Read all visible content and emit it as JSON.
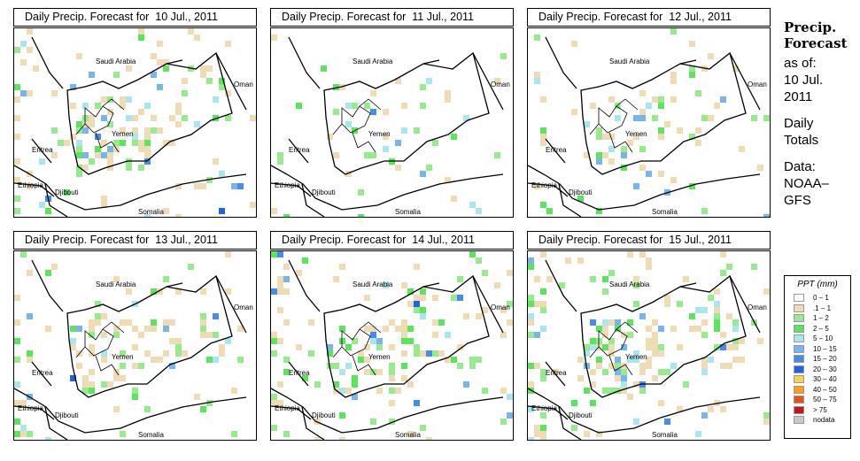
{
  "panels": [
    {
      "title": "Daily Precip. Forecast for  10 Jul., 2011",
      "density": 0.75,
      "seed": 11
    },
    {
      "title": "Daily Precip. Forecast for  11 Jul., 2011",
      "density": 0.25,
      "seed": 23
    },
    {
      "title": "Daily Precip. Forecast for  12 Jul., 2011",
      "density": 0.45,
      "seed": 37
    },
    {
      "title": "Daily Precip. Forecast for  13 Jul., 2011",
      "density": 0.65,
      "seed": 41
    },
    {
      "title": "Daily Precip. Forecast for  14 Jul., 2011",
      "density": 0.8,
      "seed": 53
    },
    {
      "title": "Daily Precip. Forecast for  15 Jul., 2011",
      "density": 0.85,
      "seed": 67
    }
  ],
  "map_labels": {
    "saudi": "Saudi Arabia",
    "oman": "Oman",
    "yemen": "Yemen",
    "eritrea": "Eritrea",
    "ethiopia": "Ethiopia",
    "djibouti": "Djibouti",
    "somalia": "Somalia"
  },
  "side": {
    "heading1": "Precip.",
    "heading2": "Forecast",
    "asof": "as of:",
    "date1": "10 Jul.",
    "date2": "2011",
    "daily1": "Daily",
    "daily2": "Totals",
    "data1": "Data:",
    "data2": "NOAA–",
    "data3": "GFS"
  },
  "legend": {
    "title": "PPT (mm)",
    "items": [
      {
        "label": "0 – 1",
        "color": "#ffffff"
      },
      {
        "label": ".1 – 1",
        "color": "#efdcb4"
      },
      {
        "label": "1 – 2",
        "color": "#96eb8c"
      },
      {
        "label": "2 – 5",
        "color": "#5ae65a"
      },
      {
        "label": "5 – 10",
        "color": "#aae6f0"
      },
      {
        "label": "10 – 15",
        "color": "#78b4f0"
      },
      {
        "label": "15 – 20",
        "color": "#468cf0"
      },
      {
        "label": "20 – 30",
        "color": "#1e64e6"
      },
      {
        "label": "30 – 40",
        "color": "#ffd246"
      },
      {
        "label": "40 – 50",
        "color": "#ffa014"
      },
      {
        "label": "50 – 75",
        "color": "#f05014"
      },
      {
        "label": "> 75",
        "color": "#c81414"
      },
      {
        "label": "nodata",
        "color": "#c8c8c8"
      }
    ]
  }
}
